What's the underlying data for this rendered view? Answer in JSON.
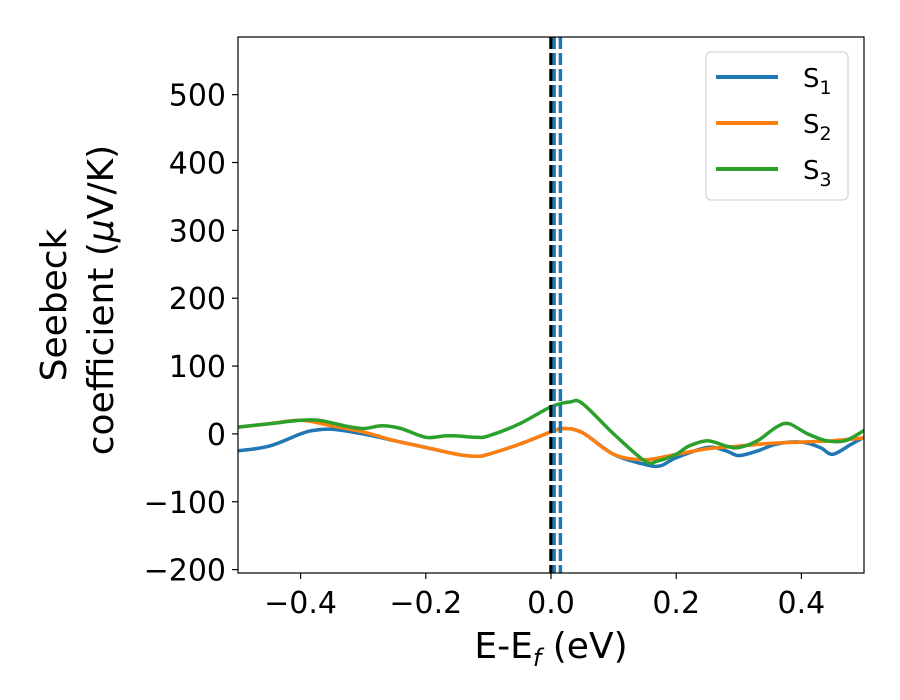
{
  "chart_data": {
    "type": "line",
    "xlabel_main": "E-E",
    "xlabel_sub": "f",
    "xlabel_unit": " (eV)",
    "ylabel_line1": "Seebeck",
    "ylabel_line2_text": "coefficient  (",
    "ylabel_line2_mu": "μ",
    "ylabel_line2_unit": "V/K)",
    "xlim": [
      -0.5,
      0.5
    ],
    "ylim": [
      -205,
      585
    ],
    "x_ticks": [
      -0.4,
      -0.2,
      0.0,
      0.2,
      0.4
    ],
    "x_tick_labels": [
      "−0.4",
      "−0.2",
      "0.0",
      "0.2",
      "0.4"
    ],
    "y_ticks": [
      -200,
      -100,
      0,
      100,
      200,
      300,
      400,
      500
    ],
    "y_tick_labels": [
      "−200",
      "−100",
      "0",
      "100",
      "200",
      "300",
      "400",
      "500"
    ],
    "legend_position": "top-right",
    "grid": false,
    "vertical_lines": [
      {
        "x": 0.0,
        "color": "#000000",
        "style": "dashed"
      },
      {
        "x": 0.005,
        "color": "#1f77b4",
        "style": "dashed"
      },
      {
        "x": 0.015,
        "color": "#1f77b4",
        "style": "dashed"
      }
    ],
    "series": [
      {
        "name_main": "S",
        "name_sub": "1",
        "color": "#1f77b4",
        "x": [
          -0.5,
          -0.45,
          -0.4,
          -0.38,
          -0.35,
          -0.3,
          -0.25,
          -0.2,
          -0.15,
          -0.12,
          -0.1,
          -0.05,
          0.0,
          0.02,
          0.05,
          0.1,
          0.15,
          0.175,
          0.2,
          0.25,
          0.28,
          0.3,
          0.33,
          0.36,
          0.4,
          0.43,
          0.45,
          0.48,
          0.5
        ],
        "y": [
          -25,
          -18,
          0,
          5,
          7,
          0,
          -10,
          -20,
          -30,
          -33,
          -30,
          -15,
          3,
          8,
          2,
          -30,
          -45,
          -47,
          -35,
          -20,
          -25,
          -32,
          -25,
          -15,
          -12,
          -20,
          -30,
          -15,
          -5
        ]
      },
      {
        "name_main": "S",
        "name_sub": "2",
        "color": "#ff7f0e",
        "x": [
          -0.5,
          -0.45,
          -0.4,
          -0.35,
          -0.3,
          -0.25,
          -0.2,
          -0.15,
          -0.12,
          -0.1,
          -0.05,
          0.0,
          0.02,
          0.05,
          0.1,
          0.15,
          0.2,
          0.25,
          0.3,
          0.35,
          0.4,
          0.45,
          0.5
        ],
        "y": [
          10,
          15,
          20,
          12,
          3,
          -10,
          -20,
          -30,
          -33,
          -30,
          -15,
          3,
          8,
          2,
          -30,
          -38,
          -30,
          -22,
          -18,
          -14,
          -12,
          -10,
          -6
        ]
      },
      {
        "name_main": "S",
        "name_sub": "3",
        "color": "#2ca02c",
        "x": [
          -0.5,
          -0.45,
          -0.4,
          -0.37,
          -0.33,
          -0.3,
          -0.27,
          -0.24,
          -0.2,
          -0.17,
          -0.15,
          -0.12,
          -0.1,
          -0.05,
          0.0,
          0.03,
          0.05,
          0.1,
          0.15,
          0.17,
          0.2,
          0.22,
          0.25,
          0.28,
          0.3,
          0.33,
          0.36,
          0.38,
          0.41,
          0.44,
          0.47,
          0.5
        ],
        "y": [
          10,
          15,
          20,
          20,
          12,
          8,
          12,
          8,
          -5,
          -3,
          -3,
          -5,
          -3,
          15,
          40,
          47,
          45,
          0,
          -40,
          -40,
          -30,
          -18,
          -10,
          -18,
          -20,
          -10,
          10,
          15,
          0,
          -10,
          -10,
          5
        ]
      }
    ]
  }
}
